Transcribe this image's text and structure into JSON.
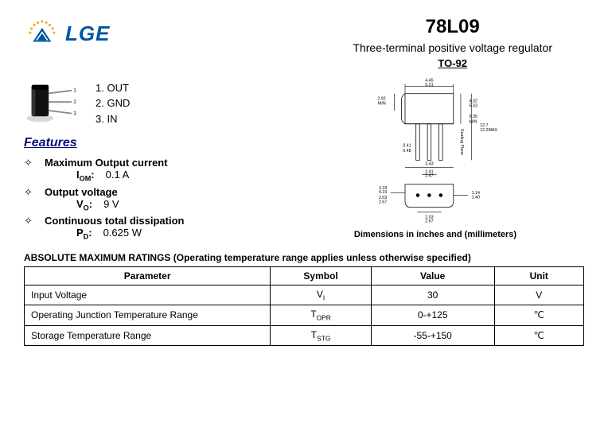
{
  "brand": "LGE",
  "header": {
    "part_number": "78L09",
    "subtitle": "Three-terminal positive voltage regulator",
    "package": "TO-92"
  },
  "pins": [
    {
      "num": "1",
      "label": "OUT"
    },
    {
      "num": "2",
      "label": "GND"
    },
    {
      "num": "3",
      "label": "IN"
    }
  ],
  "features_heading": "Features",
  "features": [
    {
      "title": "Maximum Output current",
      "symbol_html": "I<sub>OM</sub>:",
      "value": "0.1 A"
    },
    {
      "title": "Output voltage",
      "symbol_html": "V<sub>O</sub>:",
      "value": "9 V"
    },
    {
      "title": "Continuous total dissipation",
      "symbol_html": "P<sub>D</sub>:",
      "value": "0.625 W"
    }
  ],
  "dimension_caption": "Dimensions in inches and (millimeters)",
  "dim_labels": {
    "top_w": [
      "4.45",
      "5.21"
    ],
    "left_h": [
      "2.92",
      "MIN"
    ],
    "right_h1": [
      "4.32",
      "5.33"
    ],
    "right_h2": [
      "6.35",
      "MIN"
    ],
    "right_tot": [
      "12.7",
      "12.2MAX"
    ],
    "lead_th": [
      "0.41",
      "0.48"
    ],
    "body_w": [
      "3.43",
      "0.41",
      "MIN"
    ],
    "pitch": [
      "2.41",
      "2.67"
    ],
    "base_l": [
      "3.18",
      "4.19"
    ],
    "base_r": [
      "2.03",
      "2.67"
    ],
    "base_b": [
      "2.03",
      "2.67"
    ],
    "tab": [
      "1.14",
      "1.40"
    ],
    "seating": "Seating Plane"
  },
  "ratings_heading": "ABSOLUTE MAXIMUM RATINGS (Operating temperature range applies unless otherwise specified)",
  "ratings_columns": [
    "Parameter",
    "Symbol",
    "Value",
    "Unit"
  ],
  "ratings_rows": [
    {
      "parameter": "Input Voltage",
      "symbol_html": "V<sub>I</sub>",
      "value": "30",
      "unit": "V"
    },
    {
      "parameter": "Operating Junction Temperature Range",
      "symbol_html": "T<sub>OPR</sub>",
      "value": "0-+125",
      "unit": "℃"
    },
    {
      "parameter": "Storage Temperature Range",
      "symbol_html": "T<sub>STG</sub>",
      "value": "-55-+150",
      "unit": "℃"
    }
  ],
  "colors": {
    "brand_blue": "#0055a5",
    "logo_orange": "#f5a623",
    "logo_blue": "#0055a5",
    "text": "#000000",
    "features_hd": "#0a0a7a"
  }
}
